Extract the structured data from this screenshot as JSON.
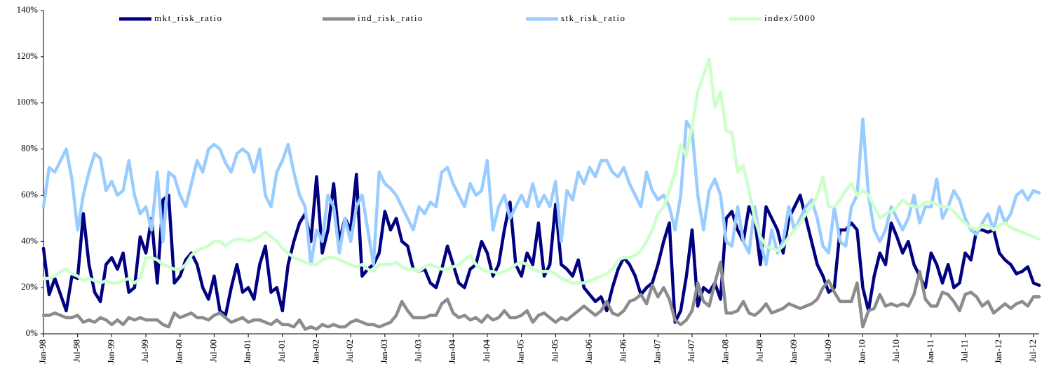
{
  "chart_data": {
    "type": "line",
    "categories": [
      "Jan-98",
      null,
      null,
      null,
      null,
      null,
      "Jul-98",
      null,
      null,
      null,
      null,
      null,
      "Jan-99",
      null,
      null,
      null,
      null,
      null,
      "Jul-99",
      null,
      null,
      null,
      null,
      null,
      "Jan-00",
      null,
      null,
      null,
      null,
      null,
      "Jul-00",
      null,
      null,
      null,
      null,
      null,
      "Jan-01",
      null,
      null,
      null,
      null,
      null,
      "Jul-01",
      null,
      null,
      null,
      null,
      null,
      "Jan-02",
      null,
      null,
      null,
      null,
      null,
      "Jul-02",
      null,
      null,
      null,
      null,
      null,
      "Jan-03",
      null,
      null,
      null,
      null,
      null,
      "Jul-03",
      null,
      null,
      null,
      null,
      null,
      "Jan-04",
      null,
      null,
      null,
      null,
      null,
      "Jul-04",
      null,
      null,
      null,
      null,
      null,
      "Jan-05",
      null,
      null,
      null,
      null,
      null,
      "Jul-05",
      null,
      null,
      null,
      null,
      null,
      "Jan-06",
      null,
      null,
      null,
      null,
      null,
      "Jul-06",
      null,
      null,
      null,
      null,
      null,
      "Jan-07",
      null,
      null,
      null,
      null,
      null,
      "Jul-07",
      null,
      null,
      null,
      null,
      null,
      "Jan-08",
      null,
      null,
      null,
      null,
      null,
      "Jul-08",
      null,
      null,
      null,
      null,
      null,
      "Jan-09",
      null,
      null,
      null,
      null,
      null,
      "Jul-09",
      null,
      null,
      null,
      null,
      null,
      "Jan-10",
      null,
      null,
      null,
      null,
      null,
      "Jul-10",
      null,
      null,
      null,
      null,
      null,
      "Jan-11",
      null,
      null,
      null,
      null,
      null,
      "Jul-11",
      null,
      null,
      null,
      null,
      null,
      "Jan-12",
      null,
      null,
      null,
      null,
      null,
      "Jul-12",
      null
    ],
    "series": [
      {
        "name": "mkt_risk_ratio",
        "color": "#000080",
        "values": [
          37,
          17,
          24,
          17,
          10,
          25,
          24,
          52,
          30,
          18,
          14,
          30,
          33,
          28,
          35,
          18,
          20,
          42,
          35,
          50,
          22,
          58,
          60,
          22,
          25,
          32,
          35,
          30,
          20,
          15,
          25,
          10,
          8,
          20,
          30,
          18,
          20,
          15,
          30,
          38,
          18,
          20,
          10,
          30,
          40,
          48,
          52,
          40,
          68,
          35,
          45,
          65,
          40,
          50,
          45,
          69,
          25,
          28,
          30,
          35,
          53,
          45,
          50,
          40,
          38,
          28,
          27,
          28,
          22,
          20,
          28,
          38,
          30,
          22,
          20,
          28,
          30,
          40,
          35,
          25,
          30,
          45,
          57,
          30,
          25,
          35,
          30,
          48,
          25,
          30,
          56,
          30,
          28,
          25,
          32,
          20,
          17,
          14,
          16,
          10,
          20,
          28,
          33,
          30,
          25,
          17,
          20,
          22,
          30,
          40,
          48,
          5,
          10,
          25,
          45,
          12,
          20,
          18,
          22,
          15,
          50,
          53,
          45,
          40,
          55,
          50,
          30,
          55,
          50,
          45,
          35,
          50,
          55,
          60,
          50,
          40,
          30,
          25,
          18,
          20,
          45,
          45,
          48,
          45,
          20,
          10,
          25,
          35,
          30,
          48,
          42,
          35,
          40,
          30,
          25,
          20,
          35,
          30,
          22,
          30,
          20,
          22,
          35,
          32,
          45,
          45,
          44,
          45,
          35,
          32,
          30,
          26,
          27,
          29,
          22,
          21
        ]
      },
      {
        "name": "ind_risk_ratio",
        "color": "#8c8c8c",
        "values": [
          8,
          8,
          9,
          8,
          7,
          7,
          8,
          5,
          6,
          5,
          7,
          6,
          4,
          6,
          4,
          7,
          6,
          7,
          6,
          6,
          6,
          4,
          3,
          9,
          7,
          8,
          9,
          7,
          7,
          6,
          8,
          9,
          7,
          5,
          6,
          7,
          5,
          6,
          6,
          5,
          4,
          6,
          4,
          4,
          3,
          6,
          2,
          3,
          2,
          4,
          3,
          4,
          3,
          3,
          5,
          6,
          5,
          4,
          4,
          3,
          4,
          5,
          8,
          14,
          10,
          7,
          7,
          7,
          8,
          8,
          13,
          15,
          9,
          7,
          8,
          6,
          7,
          5,
          8,
          6,
          7,
          10,
          7,
          7,
          8,
          10,
          5,
          8,
          9,
          7,
          5,
          7,
          6,
          8,
          10,
          12,
          10,
          8,
          10,
          14,
          9,
          8,
          10,
          14,
          15,
          17,
          13,
          21,
          16,
          20,
          15,
          6,
          4,
          6,
          10,
          22,
          14,
          12,
          22,
          31,
          9,
          9,
          10,
          14,
          9,
          8,
          10,
          13,
          9,
          10,
          11,
          13,
          12,
          11,
          12,
          13,
          15,
          20,
          23,
          18,
          14,
          14,
          14,
          22,
          3,
          10,
          11,
          17,
          12,
          13,
          12,
          13,
          12,
          17,
          27,
          15,
          12,
          12,
          18,
          17,
          14,
          10,
          17,
          18,
          16,
          12,
          14,
          9,
          11,
          13,
          11,
          13,
          14,
          12,
          16,
          16
        ]
      },
      {
        "name": "stk_risk_ratio",
        "color": "#99ccff",
        "values": [
          55,
          72,
          70,
          75,
          80,
          67,
          45,
          60,
          70,
          78,
          76,
          62,
          66,
          60,
          62,
          75,
          60,
          52,
          55,
          45,
          70,
          40,
          70,
          68,
          60,
          55,
          65,
          75,
          70,
          80,
          82,
          80,
          74,
          70,
          78,
          80,
          78,
          70,
          80,
          60,
          55,
          70,
          75,
          82,
          70,
          60,
          55,
          30,
          45,
          40,
          60,
          55,
          35,
          50,
          40,
          55,
          60,
          45,
          30,
          70,
          65,
          63,
          60,
          55,
          50,
          45,
          55,
          52,
          57,
          55,
          70,
          72,
          65,
          60,
          55,
          65,
          60,
          62,
          75,
          45,
          55,
          60,
          50,
          55,
          60,
          55,
          65,
          55,
          60,
          55,
          66,
          40,
          62,
          58,
          70,
          65,
          72,
          68,
          75,
          75,
          70,
          68,
          72,
          65,
          60,
          55,
          70,
          62,
          58,
          60,
          55,
          45,
          60,
          92,
          88,
          60,
          45,
          62,
          67,
          60,
          40,
          38,
          55,
          40,
          35,
          55,
          40,
          30,
          45,
          35,
          40,
          55,
          45,
          50,
          55,
          58,
          50,
          38,
          35,
          55,
          40,
          38,
          55,
          60,
          93,
          60,
          45,
          40,
          45,
          55,
          50,
          45,
          50,
          60,
          48,
          55,
          55,
          67,
          50,
          55,
          62,
          58,
          50,
          45,
          43,
          48,
          52,
          45,
          55,
          48,
          52,
          60,
          62,
          58,
          62,
          61
        ]
      },
      {
        "name": "index/5000",
        "color": "#ccffcc",
        "values": [
          24,
          24,
          25,
          27,
          28,
          26,
          25,
          23,
          24,
          23,
          22,
          23,
          22,
          22,
          23,
          24,
          22,
          24,
          33,
          33,
          32,
          30,
          29,
          28,
          28,
          30,
          34,
          36,
          37,
          38,
          40,
          40,
          38,
          40,
          41,
          41,
          40,
          41,
          42,
          44,
          42,
          40,
          37,
          35,
          33,
          32,
          31,
          30,
          30,
          32,
          33,
          33,
          32,
          31,
          30,
          29,
          30,
          28,
          27,
          30,
          30,
          30,
          31,
          29,
          28,
          28,
          27,
          29,
          30,
          29,
          28,
          28,
          29,
          30,
          32,
          34,
          30,
          28,
          27,
          27,
          26,
          27,
          28,
          30,
          31,
          30,
          28,
          27,
          27,
          27,
          26,
          24,
          23,
          22,
          22,
          22,
          23,
          24,
          25,
          26,
          28,
          32,
          33,
          33,
          34,
          36,
          40,
          45,
          52,
          55,
          62,
          70,
          82,
          77,
          90,
          105,
          112,
          119,
          98,
          105,
          88,
          87,
          70,
          73,
          62,
          50,
          42,
          38,
          37,
          36,
          38,
          42,
          45,
          48,
          52,
          55,
          60,
          68,
          55,
          55,
          58,
          62,
          65,
          60,
          62,
          60,
          55,
          50,
          52,
          53,
          55,
          58,
          56,
          55,
          55,
          57,
          57,
          56,
          55,
          55,
          53,
          50,
          48,
          46,
          45,
          47,
          47,
          45,
          47,
          48,
          46,
          45,
          44,
          43,
          42,
          41
        ]
      }
    ],
    "ylim": [
      0,
      140
    ],
    "yticks": [
      {
        "value": 0,
        "label": "0%"
      },
      {
        "value": 20,
        "label": "20%"
      },
      {
        "value": 40,
        "label": "40%"
      },
      {
        "value": 60,
        "label": "60%"
      },
      {
        "value": 80,
        "label": "80%"
      },
      {
        "value": 100,
        "label": "100%"
      },
      {
        "value": 120,
        "label": "120%"
      },
      {
        "value": 140,
        "label": "140%"
      }
    ],
    "legend": "top"
  }
}
